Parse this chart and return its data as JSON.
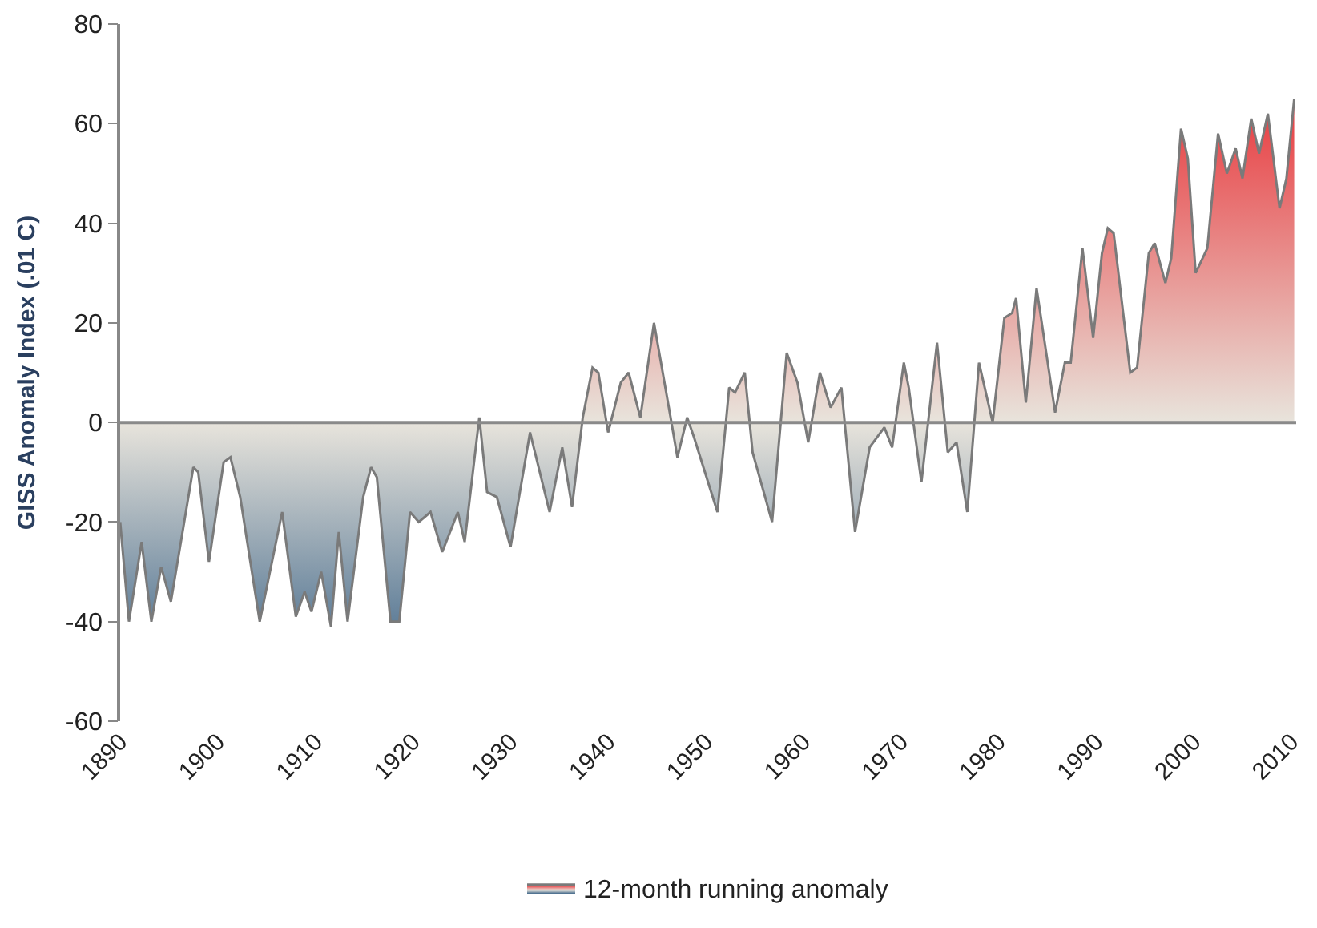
{
  "chart_data": {
    "type": "area",
    "ylabel": "GISS Anomaly Index (.01 C)",
    "xlim": [
      1890,
      2010.5
    ],
    "xticks": [
      1890,
      1900,
      1910,
      1920,
      1930,
      1940,
      1950,
      1960,
      1970,
      1980,
      1990,
      2000,
      2010
    ],
    "ylim": [
      -60,
      80
    ],
    "yticks": [
      -60,
      -40,
      -20,
      0,
      20,
      40,
      60,
      80
    ],
    "ref_lines": [
      {
        "axis": "y",
        "value": 0,
        "color": "#8a8a8a"
      }
    ],
    "legend": "bottom",
    "marker": "none",
    "line_style": "solid",
    "series": [
      {
        "name": "12-month running anomaly",
        "x": [
          1890.0,
          1890.9,
          1892.2,
          1893.2,
          1894.2,
          1895.2,
          1897.5,
          1898.0,
          1899.1,
          1900.6,
          1901.3,
          1902.3,
          1904.3,
          1906.6,
          1908.0,
          1908.9,
          1909.6,
          1910.6,
          1911.6,
          1912.4,
          1913.3,
          1914.9,
          1915.7,
          1916.3,
          1917.7,
          1918.6,
          1919.7,
          1920.6,
          1921.8,
          1923.0,
          1924.6,
          1925.3,
          1926.8,
          1927.6,
          1928.6,
          1930.0,
          1932.0,
          1934.0,
          1935.3,
          1936.3,
          1937.4,
          1938.4,
          1939.0,
          1940.0,
          1941.3,
          1942.1,
          1943.3,
          1944.7,
          1946.4,
          1947.1,
          1948.1,
          1948.8,
          1951.2,
          1952.4,
          1953.0,
          1954.0,
          1954.8,
          1956.8,
          1958.3,
          1959.4,
          1960.5,
          1961.7,
          1962.8,
          1963.9,
          1965.3,
          1966.8,
          1968.3,
          1969.1,
          1970.3,
          1970.8,
          1972.1,
          1973.7,
          1974.8,
          1975.7,
          1976.8,
          1978.0,
          1979.4,
          1980.6,
          1981.4,
          1981.8,
          1982.8,
          1983.9,
          1985.8,
          1986.8,
          1987.4,
          1988.6,
          1989.7,
          1990.6,
          1991.2,
          1991.8,
          1993.5,
          1994.2,
          1995.4,
          1996.0,
          1997.1,
          1997.7,
          1998.7,
          1999.4,
          2000.2,
          2001.4,
          2002.5,
          2003.4,
          2004.3,
          2005.0,
          2005.9,
          2006.7,
          2007.6,
          2008.8,
          2009.5,
          2010.3
        ],
        "values": [
          -20,
          -40,
          -24,
          -40,
          -29,
          -36,
          -9,
          -10,
          -28,
          -8,
          -7,
          -15,
          -40,
          -18,
          -39,
          -34,
          -38,
          -30,
          -41,
          -22,
          -40,
          -15,
          -9,
          -11,
          -40,
          -40,
          -18,
          -20,
          -18,
          -26,
          -18,
          -24,
          1,
          -14,
          -15,
          -25,
          -2,
          -18,
          -5,
          -17,
          1,
          11,
          10,
          -2,
          8,
          10,
          1,
          20,
          1,
          -7,
          1,
          -3,
          -18,
          7,
          6,
          10,
          -6,
          -20,
          14,
          8,
          -4,
          10,
          3,
          7,
          -22,
          -5,
          -1,
          -5,
          12,
          7,
          -12,
          16,
          -6,
          -4,
          -18,
          12,
          0,
          21,
          22,
          25,
          4,
          27,
          2,
          12,
          12,
          35,
          17,
          34,
          39,
          38,
          10,
          11,
          34,
          36,
          28,
          33,
          59,
          53,
          30,
          35,
          58,
          50,
          55,
          49,
          61,
          54,
          62,
          43,
          49,
          65
        ]
      }
    ]
  }
}
